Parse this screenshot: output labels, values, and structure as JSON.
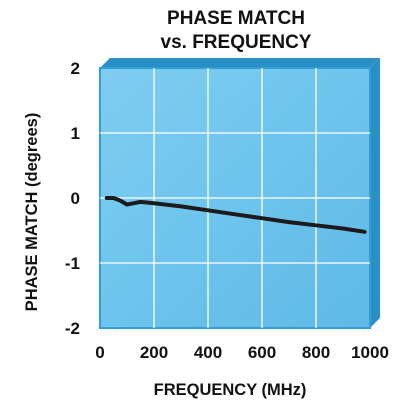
{
  "chart_data": {
    "type": "line",
    "title": [
      "PHASE MATCH",
      "vs. FREQUENCY"
    ],
    "xlabel": "FREQUENCY (MHz)",
    "ylabel": "PHASE MATCH (degrees)",
    "xlim": [
      0,
      1000
    ],
    "ylim": [
      -2,
      2
    ],
    "x_ticks": [
      0,
      200,
      400,
      600,
      800,
      1000
    ],
    "x_tick_labels": [
      "0",
      "200",
      "400",
      "600",
      "800",
      "1000"
    ],
    "y_ticks": [
      2,
      1,
      0,
      -1,
      -2
    ],
    "y_tick_labels": [
      "2",
      "1",
      "0",
      "-1",
      "-2"
    ],
    "grid": true,
    "colors": {
      "plot_bg": "#6cc3ec",
      "plot_bg_light": "#9ad6f3",
      "frame": "#2f9fd7",
      "grid": "#ffffff",
      "line": "#1b1b1b"
    },
    "series": [
      {
        "x": [
          25,
          50,
          75,
          100,
          125,
          150,
          200,
          300,
          400,
          500,
          600,
          700,
          800,
          900,
          980
        ],
        "y": [
          0.0,
          0.0,
          -0.04,
          -0.1,
          -0.08,
          -0.06,
          -0.08,
          -0.13,
          -0.19,
          -0.25,
          -0.31,
          -0.37,
          -0.42,
          -0.47,
          -0.52
        ]
      }
    ]
  }
}
